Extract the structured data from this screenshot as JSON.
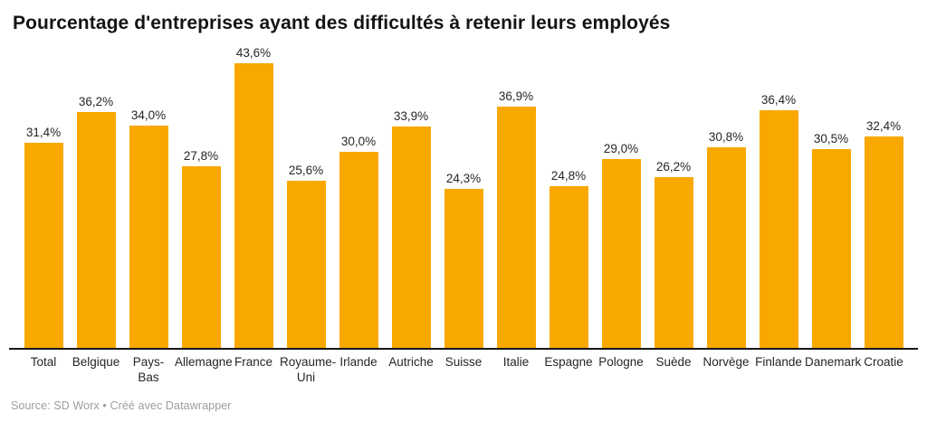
{
  "chart": {
    "title": "Pourcentage d'entreprises ayant des difficultés à retenir leurs employés"
  },
  "chart_data": {
    "type": "bar",
    "title": "Pourcentage d'entreprises ayant des difficultés à retenir leurs employés",
    "categories": [
      "Total",
      "Belgique",
      "Pays-Bas",
      "Allemagne",
      "France",
      "Royaume-Uni",
      "Irlande",
      "Autriche",
      "Suisse",
      "Italie",
      "Espagne",
      "Pologne",
      "Suède",
      "Norvège",
      "Finlande",
      "Danemark",
      "Croatie"
    ],
    "category_display": [
      "Total",
      "Belgique",
      "Pays-\nBas",
      "Allemagne",
      "France",
      "Royaume-\nUni",
      "Irlande",
      "Autriche",
      "Suisse",
      "Italie",
      "Espagne",
      "Pologne",
      "Suède",
      "Norvège",
      "Finlande",
      "Danemark",
      "Croatie"
    ],
    "values": [
      31.4,
      36.2,
      34.0,
      27.8,
      43.6,
      25.6,
      30.0,
      33.9,
      24.3,
      36.9,
      24.8,
      29.0,
      26.2,
      30.8,
      36.4,
      30.5,
      32.4
    ],
    "value_labels": [
      "31,4%",
      "36,2%",
      "34,0%",
      "27,8%",
      "43,6%",
      "25,6%",
      "30,0%",
      "33,9%",
      "24,3%",
      "36,9%",
      "24,8%",
      "29,0%",
      "26,2%",
      "30,8%",
      "36,4%",
      "30,5%",
      "32,4%"
    ],
    "xlabel": "",
    "ylabel": "",
    "ylim": [
      0,
      43.6
    ],
    "grid": false,
    "legend": "none",
    "bar_color": "#F9A800",
    "axis_color": "#161616",
    "label_color": "#262626",
    "title_color": "#141414",
    "source_color": "#9d9d9d"
  },
  "footer": {
    "text": "Source: SD Worx • Créé avec Datawrapper"
  }
}
